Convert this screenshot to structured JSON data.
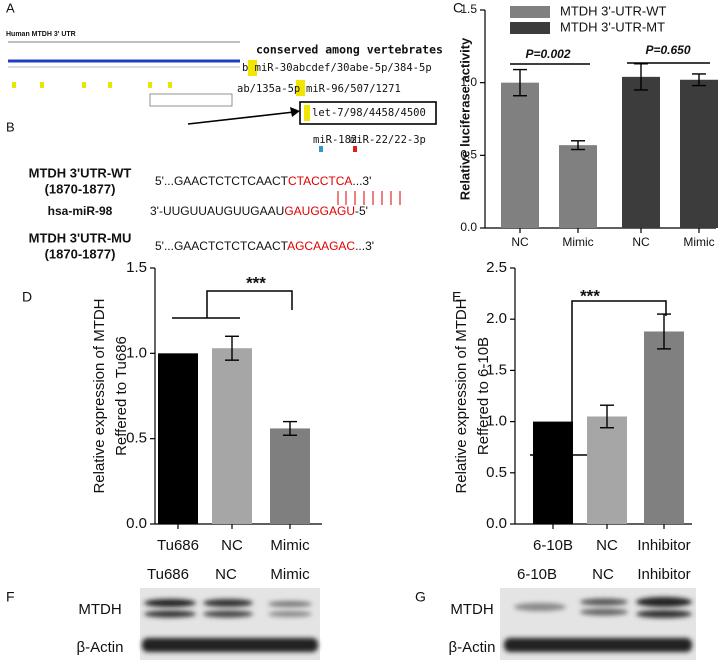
{
  "panel_a": {
    "letter": "A",
    "gene": "Human MTDH 3' UTR",
    "heading": "conserved among vertebrates",
    "site_1": "b miR-30abcdef/30abe-5p/384-5p",
    "site_2": "ab/135a-5p",
    "site_3": "miR-96/507/1271",
    "site_4": "let-7/98/4458/4500",
    "site_5": "miR-182",
    "site_6": "miR-22/22-3p"
  },
  "panel_b": {
    "letter": "B",
    "rows": [
      {
        "label": [
          "MTDH 3'UTR-WT",
          "(1870-1877)"
        ],
        "sequence": [
          "5'...GAACTCTCTCAACT",
          "CTACCTCA",
          "...3'"
        ]
      },
      {
        "label": [
          "hsa-miR-98"
        ],
        "sequence": [
          "3'-UUGUUAUGUUGAAU",
          "GAUGGAGU",
          "-5'"
        ]
      },
      {
        "label": [
          "MTDH 3'UTR-MU",
          "(1870-1877)"
        ],
        "sequence": [
          "5'...GAACTCTCTCAACT",
          "AGCAAGAC",
          "...3'"
        ]
      }
    ]
  },
  "chart_data": [
    {
      "type": "bar",
      "letter": "C",
      "ylabel": "Relative luciferase activity",
      "categories": [
        "NC",
        "Mimic",
        "NC",
        "Mimic"
      ],
      "series": [
        {
          "name": "MTDH 3'-UTR-WT",
          "color": "#808080",
          "values": [
            1.0,
            0.57,
            null,
            null
          ],
          "errors": [
            0.09,
            0.03,
            null,
            null
          ]
        },
        {
          "name": "MTDH 3'-UTR-MT",
          "color": "#3c3c3c",
          "values": [
            null,
            null,
            1.04,
            1.02
          ],
          "errors": [
            null,
            null,
            0.09,
            0.04
          ]
        }
      ],
      "annotations": [
        "P=0.002",
        "P=0.650"
      ],
      "ylim": [
        0,
        1.5
      ],
      "yticks": [
        {
          "value": 0,
          "label": "0.0"
        },
        {
          "value": 0.5,
          "label": "0.5"
        },
        {
          "value": 1.0,
          "label": "1.0"
        },
        {
          "value": 1.5,
          "label": "1.5"
        }
      ]
    },
    {
      "type": "bar",
      "letter": "D",
      "ylabel": [
        "Relative expression of MTDH",
        "Reffered to Tu686"
      ],
      "categories": [
        "Tu686",
        "NC",
        "Mimic"
      ],
      "values": [
        1.0,
        1.03,
        0.56
      ],
      "errors": [
        0,
        0.07,
        0.04
      ],
      "colors": [
        "#000000",
        "#a6a6a6",
        "#7f7f7f"
      ],
      "annotations": [
        "***"
      ],
      "ylim": [
        0,
        1.5
      ],
      "yticks": [
        {
          "value": 0,
          "label": "0.0"
        },
        {
          "value": 0.5,
          "label": "0.5"
        },
        {
          "value": 1.0,
          "label": "1.0"
        },
        {
          "value": 1.5,
          "label": "1.5"
        }
      ]
    },
    {
      "type": "bar",
      "letter": "E",
      "ylabel": [
        "Relative expression of MTDH",
        "Reffered to 6-10B"
      ],
      "categories": [
        "6-10B",
        "NC",
        "Inhibitor"
      ],
      "values": [
        1.0,
        1.05,
        1.88
      ],
      "errors": [
        0,
        0.11,
        0.17
      ],
      "colors": [
        "#000000",
        "#a6a6a6",
        "#808080"
      ],
      "annotations": [
        "***"
      ],
      "ylim": [
        0,
        2.5
      ],
      "yticks": [
        {
          "value": 0,
          "label": "0.0"
        },
        {
          "value": 0.5,
          "label": "0.5"
        },
        {
          "value": 1.0,
          "label": "1.0"
        },
        {
          "value": 1.5,
          "label": "1.5"
        },
        {
          "value": 2.0,
          "label": "2.0"
        },
        {
          "value": 2.5,
          "label": "2.5"
        }
      ]
    }
  ],
  "blots": [
    {
      "letter": "F",
      "lanes": [
        "Tu686",
        "NC",
        "Mimic"
      ],
      "rows": [
        "MTDH",
        "β-Actin"
      ]
    },
    {
      "letter": "G",
      "lanes": [
        "6-10B",
        "NC",
        "Inhibitor"
      ],
      "rows": [
        "MTDH",
        "β-Actin"
      ]
    }
  ]
}
